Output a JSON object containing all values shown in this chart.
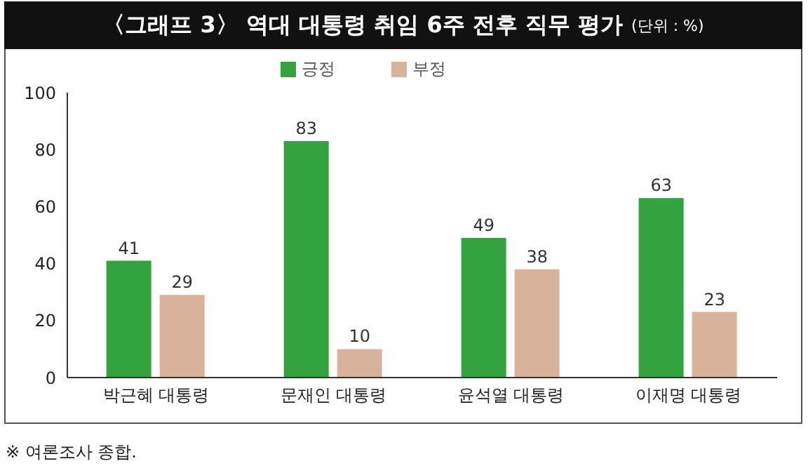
{
  "chart_data": {
    "type": "bar",
    "title": "〈그래프 3〉 역대 대통령 취임 6주 전후 직무 평가",
    "subtitle": "(단위 : %)",
    "annotations": [
      "※ 여론조사 종합."
    ],
    "categories": [
      "박근혜 대통령",
      "문재인 대통령",
      "윤석열 대통령",
      "이재명 대통령"
    ],
    "series": [
      {
        "name": "긍정",
        "color": "#33a33d",
        "values": [
          41,
          83,
          49,
          63
        ]
      },
      {
        "name": "부정",
        "color": "#d8b29a",
        "values": [
          29,
          10,
          38,
          23
        ]
      }
    ],
    "ylim": [
      0,
      100
    ],
    "yticks": [
      0,
      20,
      40,
      60,
      80,
      100
    ],
    "grid": false,
    "legend": "top",
    "data_labels": true
  }
}
